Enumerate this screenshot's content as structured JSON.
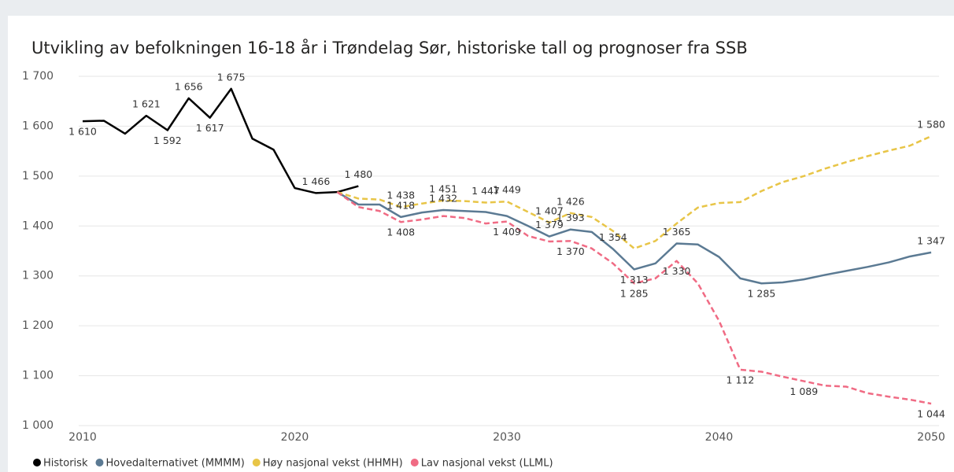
{
  "chart_data": {
    "type": "line",
    "title": "Utvikling av befolkningen 16-18 år i Trøndelag Sør, historiske tall og prognoser fra SSB",
    "x": [
      2010,
      2011,
      2012,
      2013,
      2014,
      2015,
      2016,
      2017,
      2018,
      2019,
      2020,
      2021,
      2022,
      2023,
      2024,
      2025,
      2026,
      2027,
      2028,
      2029,
      2030,
      2031,
      2032,
      2033,
      2034,
      2035,
      2036,
      2037,
      2038,
      2039,
      2040,
      2041,
      2042,
      2043,
      2044,
      2045,
      2046,
      2047,
      2048,
      2049,
      2050
    ],
    "xlim": [
      2010,
      2050
    ],
    "xticks": [
      2010,
      2020,
      2030,
      2040,
      2050
    ],
    "ylim": [
      1000,
      1700
    ],
    "yticks": [
      {
        "value": 1000,
        "label": "1 000"
      },
      {
        "value": 1100,
        "label": "1 100"
      },
      {
        "value": 1200,
        "label": "1 200"
      },
      {
        "value": 1300,
        "label": "1 300"
      },
      {
        "value": 1400,
        "label": "1 400"
      },
      {
        "value": 1500,
        "label": "1 500"
      },
      {
        "value": 1600,
        "label": "1 600"
      },
      {
        "value": 1700,
        "label": "1 700"
      }
    ],
    "grid": true,
    "legend": "bottom",
    "series": [
      {
        "name": "Historisk",
        "color": "#000000",
        "dash": false,
        "values": [
          1610,
          1611,
          1585,
          1621,
          1592,
          1656,
          1617,
          1675,
          1575,
          1553,
          1476,
          1466,
          1468,
          1480,
          null,
          null,
          null,
          null,
          null,
          null,
          null,
          null,
          null,
          null,
          null,
          null,
          null,
          null,
          null,
          null,
          null,
          null,
          null,
          null,
          null,
          null,
          null,
          null,
          null,
          null,
          null
        ],
        "value_labels": [
          "1 610",
          null,
          null,
          "1 621",
          "1 592",
          "1 656",
          "1 617",
          "1 675",
          null,
          null,
          null,
          "1 466",
          null,
          "1 480",
          null,
          null,
          null,
          null,
          null,
          null,
          null,
          null,
          null,
          null,
          null,
          null,
          null,
          null,
          null,
          null,
          null,
          null,
          null,
          null,
          null,
          null,
          null,
          null,
          null,
          null,
          null
        ]
      },
      {
        "name": "Hovedalternativet (MMMM)",
        "color": "#5b7a93",
        "dash": false,
        "values": [
          null,
          null,
          null,
          null,
          null,
          null,
          null,
          null,
          null,
          null,
          null,
          null,
          1468,
          1443,
          1443,
          1418,
          1427,
          1432,
          1430,
          1428,
          1420,
          1400,
          1379,
          1393,
          1388,
          1354,
          1313,
          1325,
          1365,
          1363,
          1338,
          1295,
          1285,
          1287,
          1293,
          1302,
          1310,
          1318,
          1327,
          1339,
          1347
        ],
        "value_labels": [
          null,
          null,
          null,
          null,
          null,
          null,
          null,
          null,
          null,
          null,
          null,
          null,
          null,
          null,
          null,
          "1 418",
          null,
          "1 432",
          null,
          null,
          null,
          null,
          "1 379",
          "1 393",
          null,
          "1 354",
          "1 313",
          null,
          "1 365",
          null,
          null,
          null,
          "1 285",
          null,
          null,
          null,
          null,
          null,
          null,
          null,
          "1 347"
        ]
      },
      {
        "name": "Høy nasjonal vekst (HHMH)",
        "color": "#e8c547",
        "dash": true,
        "values": [
          null,
          null,
          null,
          null,
          null,
          null,
          null,
          null,
          null,
          null,
          null,
          null,
          1468,
          1455,
          1453,
          1438,
          1445,
          1451,
          1450,
          1447,
          1449,
          1428,
          1407,
          1426,
          1418,
          1390,
          1355,
          1370,
          1405,
          1437,
          1446,
          1448,
          1470,
          1488,
          1500,
          1515,
          1528,
          1540,
          1551,
          1561,
          1580
        ],
        "value_labels": [
          null,
          null,
          null,
          null,
          null,
          null,
          null,
          null,
          null,
          null,
          null,
          null,
          null,
          null,
          null,
          "1 438",
          null,
          "1 451",
          null,
          "1 447",
          "1 449",
          null,
          "1 407",
          "1 426",
          null,
          null,
          null,
          null,
          null,
          null,
          null,
          null,
          null,
          null,
          null,
          null,
          null,
          null,
          null,
          null,
          "1 580"
        ]
      },
      {
        "name": "Lav nasjonal vekst (LLML)",
        "color": "#f06b84",
        "dash": true,
        "values": [
          null,
          null,
          null,
          null,
          null,
          null,
          null,
          null,
          null,
          null,
          null,
          null,
          1468,
          1438,
          1430,
          1408,
          1413,
          1420,
          1416,
          1405,
          1409,
          1380,
          1369,
          1370,
          1355,
          1325,
          1285,
          1295,
          1330,
          1285,
          1210,
          1112,
          1108,
          1098,
          1089,
          1080,
          1078,
          1065,
          1058,
          1052,
          1044
        ],
        "value_labels": [
          null,
          null,
          null,
          null,
          null,
          null,
          null,
          null,
          null,
          null,
          null,
          null,
          null,
          null,
          null,
          "1 408",
          null,
          null,
          null,
          null,
          "1 409",
          null,
          null,
          "1 370",
          null,
          null,
          "1 285",
          null,
          "1 330",
          null,
          null,
          "1 112",
          null,
          null,
          "1 089",
          null,
          null,
          null,
          null,
          null,
          "1 044"
        ]
      }
    ]
  }
}
